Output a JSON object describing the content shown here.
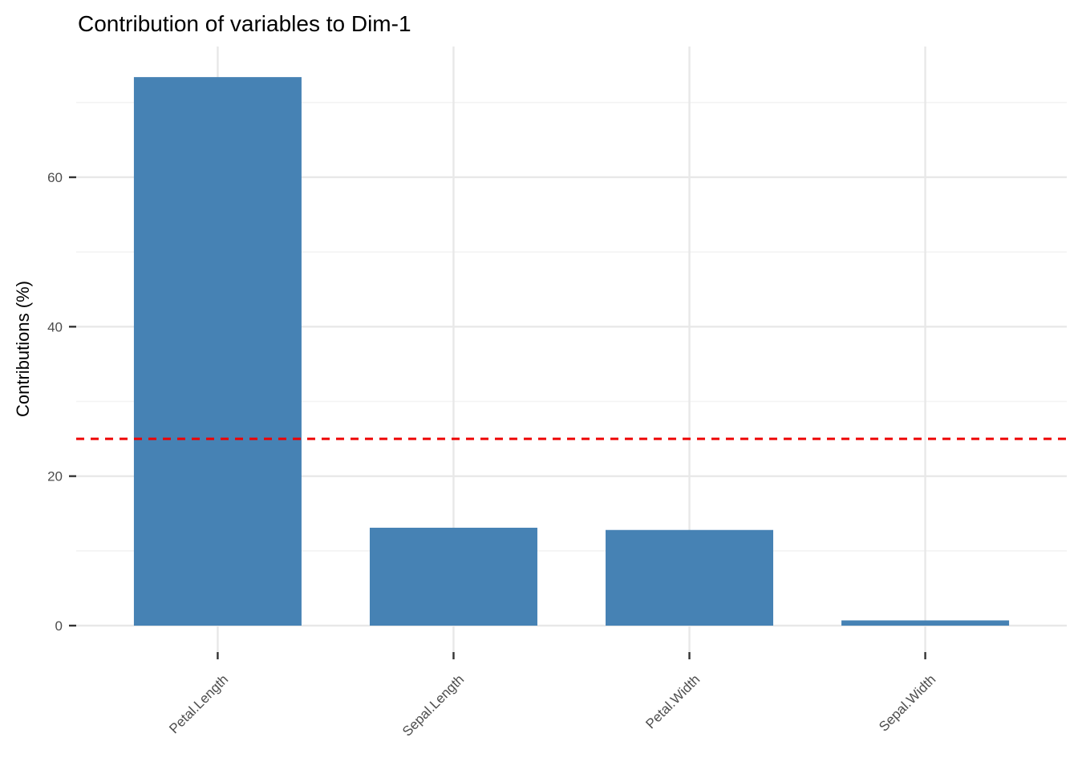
{
  "figure": {
    "background": "#FFFFFF"
  },
  "chart_data": {
    "type": "bar",
    "title": "Contribution of variables to Dim-1",
    "xlabel": "",
    "ylabel": "Contributions (%)",
    "categories": [
      "Petal.Length",
      "Sepal.Length",
      "Petal.Width",
      "Sepal.Width"
    ],
    "values": [
      73.4,
      13.1,
      12.8,
      0.7
    ],
    "y_ticks": [
      0,
      20,
      40,
      60
    ],
    "y_minor_ticks": [
      10,
      30,
      50,
      70
    ],
    "ylim": [
      -3.7,
      77.6
    ],
    "x_label_angle": 45,
    "grid": true,
    "legend": "none",
    "reference_line": {
      "value": 25,
      "style": "dashed",
      "color": "#EE0000"
    },
    "colors": {
      "bar_fill": "#4682B4",
      "grid_major": "#E8E8E8",
      "grid_minor": "#F3F3F3",
      "axis_text": "#4D4D4D",
      "tick_mark": "#333333",
      "title_text": "#000000"
    }
  }
}
